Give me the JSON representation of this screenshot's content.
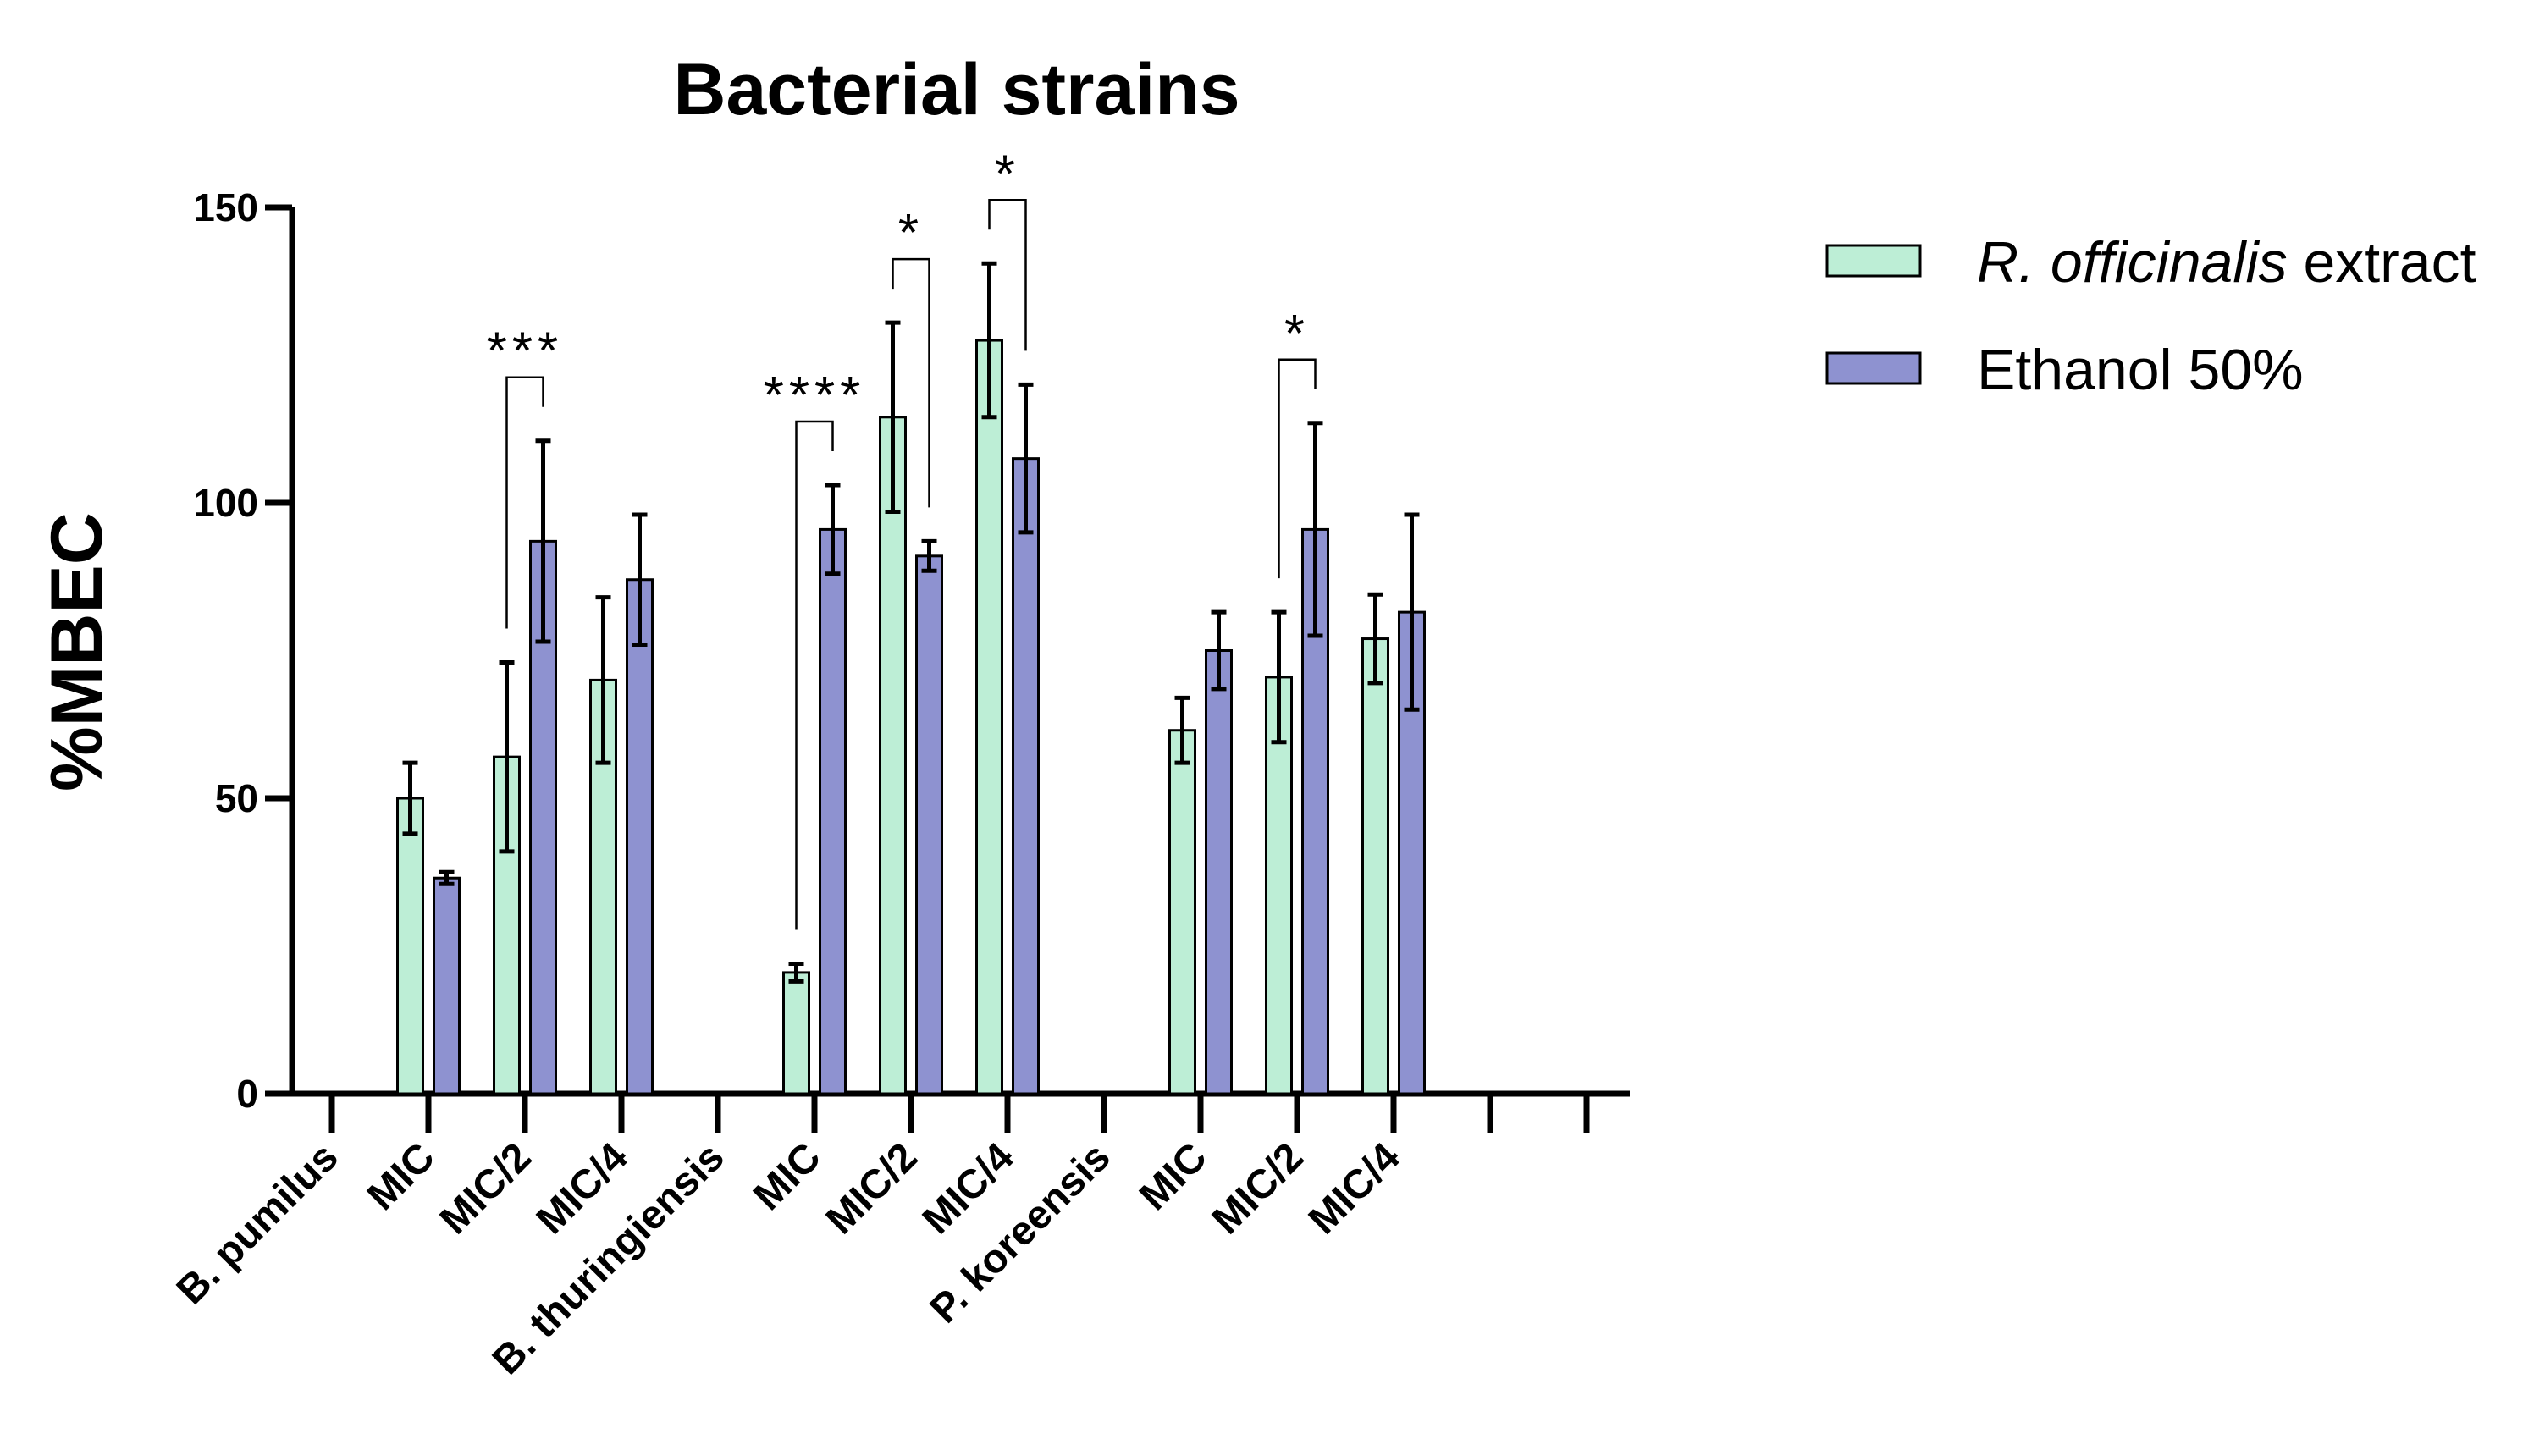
{
  "chart_data": {
    "type": "bar",
    "title": "Bacterial strains",
    "ylabel": "%MBEC",
    "xlabel": "",
    "ylim": [
      0,
      150
    ],
    "yticks": [
      0,
      50,
      100,
      150
    ],
    "categories": [
      "B. pumilus",
      "MIC",
      "MIC/2",
      "MIC/4",
      "B. thuringiensis",
      "MIC",
      "MIC/2",
      "MIC/4",
      "P. koreensis",
      "MIC",
      "MIC/2",
      "MIC/4"
    ],
    "extra_ticks_count": 2,
    "series": [
      {
        "name_italic": "R. officinalis",
        "name_rest": " extract",
        "color": "#bdeed6",
        "values": [
          null,
          50,
          57,
          70,
          null,
          20.5,
          114.5,
          127.5,
          null,
          61.5,
          70.5,
          77
        ],
        "errors": [
          null,
          6,
          16,
          14,
          null,
          1.5,
          16,
          13,
          null,
          5.5,
          11,
          7.5
        ]
      },
      {
        "name": "Ethanol 50%",
        "color": "#8e92d0",
        "values": [
          null,
          36.5,
          93.5,
          87,
          null,
          95.5,
          91,
          107.5,
          null,
          75,
          95.5,
          81.5
        ],
        "errors": [
          null,
          1,
          17,
          11,
          null,
          7.5,
          2.5,
          12.5,
          null,
          6.5,
          18,
          16.5
        ]
      }
    ],
    "significance": [
      {
        "category_index": 2,
        "label": "***"
      },
      {
        "category_index": 5,
        "label": "****"
      },
      {
        "category_index": 6,
        "label": "*"
      },
      {
        "category_index": 7,
        "label": "*"
      },
      {
        "category_index": 10,
        "label": "*"
      }
    ],
    "legend_position": "top-right"
  }
}
